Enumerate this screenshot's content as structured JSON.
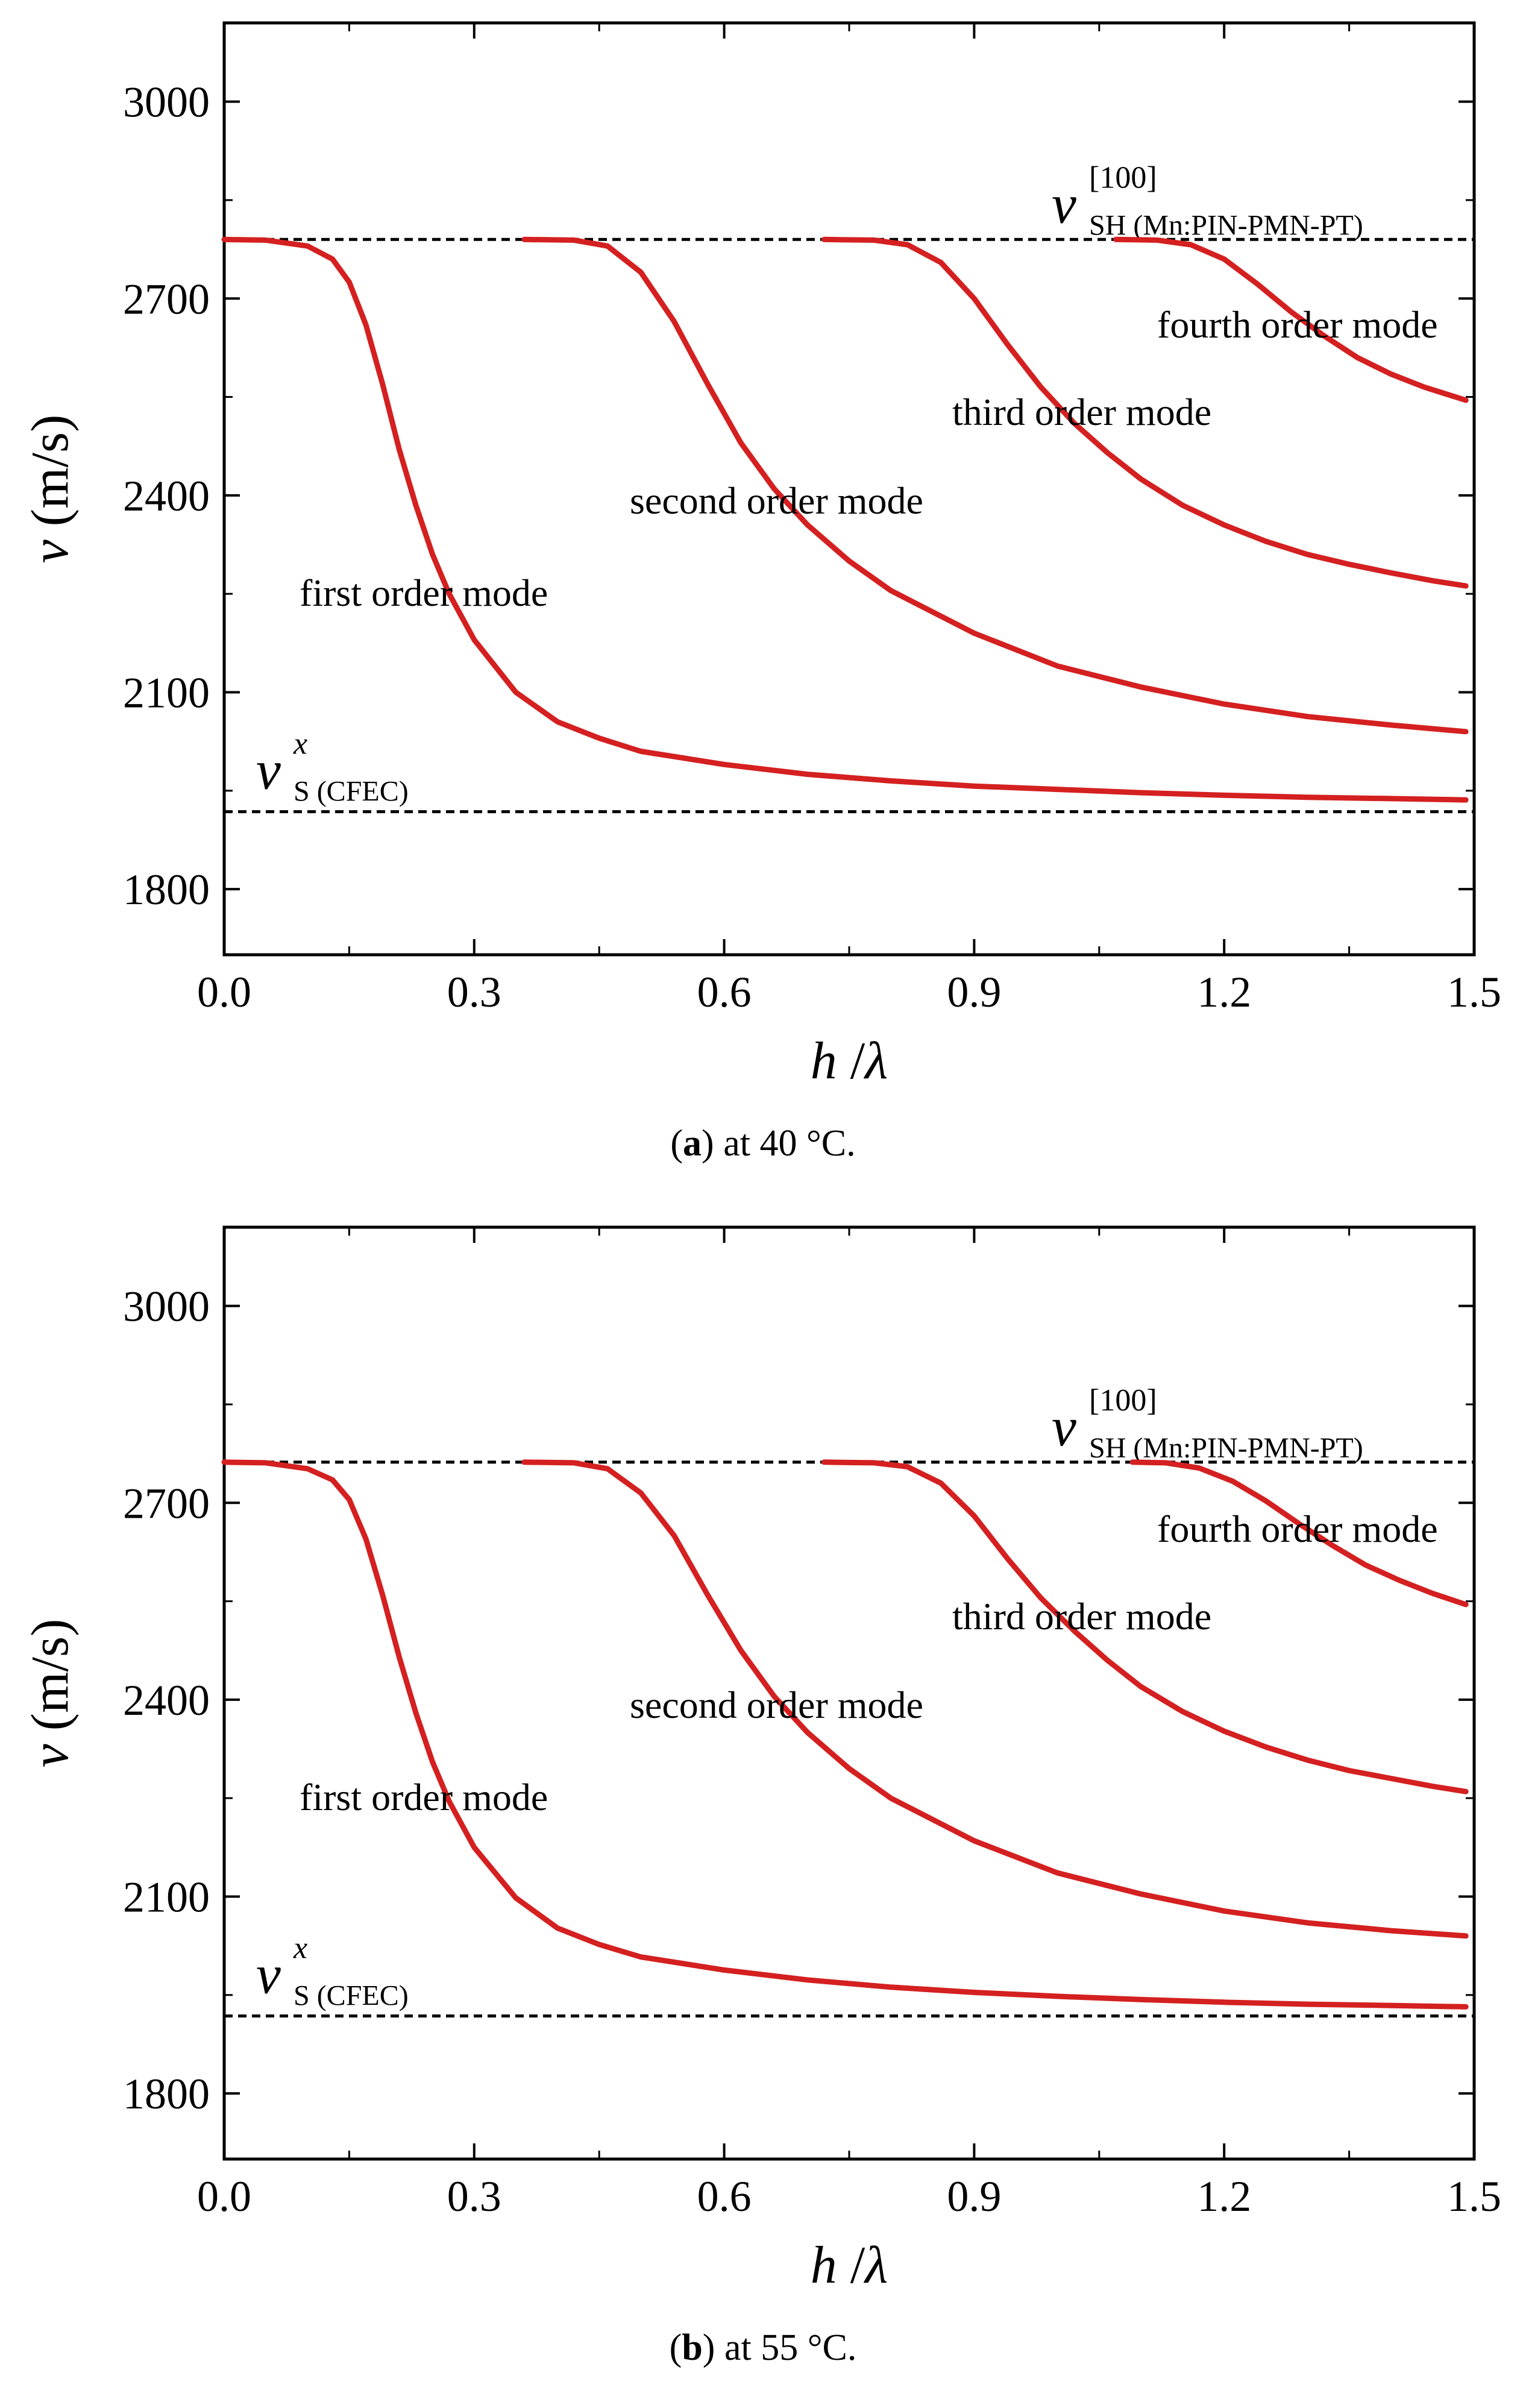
{
  "charts": {
    "a": {
      "caption": {
        "letter": "a",
        "open": "(",
        "close": ") at 40 °C."
      },
      "chart_data": {
        "type": "line",
        "xlabel": {
          "var": "h",
          "sep": " /",
          "greek": "λ"
        },
        "ylabel": {
          "var": "v",
          "unit": " (m/s)"
        },
        "xlim": [
          0.0,
          1.5
        ],
        "ylim": [
          1700,
          3120
        ],
        "xticks": [
          "0.0",
          "0.3",
          "0.6",
          "0.9",
          "1.2",
          "1.5"
        ],
        "yticks": [
          "1800",
          "2100",
          "2400",
          "2700",
          "3000"
        ],
        "reference_lines": [
          {
            "name": "v_SH[100](Mn:PIN-PMN-PT)",
            "y": 2790,
            "label": {
              "base": "v",
              "sup": "[100]",
              "sub": "SH (Mn:PIN-PMN-PT)"
            }
          },
          {
            "name": "v_S^x(CFEC)",
            "y": 1918,
            "label": {
              "base": "v",
              "sup": "x",
              "sub": "S (CFEC)"
            }
          }
        ],
        "series": [
          {
            "name": "first order mode",
            "color": "#d42020",
            "x": [
              0.0,
              0.05,
              0.1,
              0.13,
              0.15,
              0.17,
              0.19,
              0.21,
              0.23,
              0.25,
              0.27,
              0.3,
              0.35,
              0.4,
              0.45,
              0.5,
              0.6,
              0.7,
              0.8,
              0.9,
              1.0,
              1.1,
              1.2,
              1.3,
              1.4,
              1.49
            ],
            "values": [
              2790,
              2789,
              2780,
              2760,
              2725,
              2660,
              2570,
              2470,
              2385,
              2310,
              2250,
              2180,
              2100,
              2055,
              2030,
              2010,
              1990,
              1975,
              1965,
              1957,
              1952,
              1947,
              1943,
              1940,
              1938,
              1936
            ]
          },
          {
            "name": "second order mode",
            "color": "#d42020",
            "x": [
              0.36,
              0.42,
              0.46,
              0.5,
              0.54,
              0.58,
              0.62,
              0.66,
              0.7,
              0.75,
              0.8,
              0.9,
              1.0,
              1.1,
              1.2,
              1.3,
              1.4,
              1.49
            ],
            "values": [
              2790,
              2789,
              2780,
              2740,
              2665,
              2570,
              2480,
              2410,
              2355,
              2300,
              2255,
              2190,
              2140,
              2108,
              2082,
              2063,
              2050,
              2040
            ]
          },
          {
            "name": "third order mode",
            "color": "#d42020",
            "x": [
              0.72,
              0.78,
              0.82,
              0.86,
              0.9,
              0.94,
              0.98,
              1.02,
              1.06,
              1.1,
              1.15,
              1.2,
              1.25,
              1.3,
              1.35,
              1.4,
              1.45,
              1.49
            ],
            "values": [
              2790,
              2789,
              2782,
              2755,
              2700,
              2630,
              2565,
              2510,
              2465,
              2425,
              2385,
              2355,
              2330,
              2310,
              2295,
              2282,
              2270,
              2262
            ]
          },
          {
            "name": "fourth order mode",
            "color": "#d42020",
            "x": [
              1.07,
              1.12,
              1.16,
              1.2,
              1.24,
              1.28,
              1.32,
              1.36,
              1.4,
              1.44,
              1.49
            ],
            "values": [
              2790,
              2789,
              2782,
              2760,
              2722,
              2680,
              2643,
              2610,
              2585,
              2565,
              2545
            ]
          }
        ],
        "annotations": [
          "fourth order mode",
          "third order mode",
          "second order mode",
          "first order mode"
        ]
      }
    },
    "b": {
      "caption": {
        "letter": "b",
        "open": "(",
        "close": ") at 55 °C."
      },
      "chart_data": {
        "type": "line",
        "xlabel": {
          "var": "h",
          "sep": " /",
          "greek": "λ"
        },
        "ylabel": {
          "var": "v",
          "unit": " (m/s)"
        },
        "xlim": [
          0.0,
          1.5
        ],
        "ylim": [
          1700,
          3120
        ],
        "xticks": [
          "0.0",
          "0.3",
          "0.6",
          "0.9",
          "1.2",
          "1.5"
        ],
        "yticks": [
          "1800",
          "2100",
          "2400",
          "2700",
          "3000"
        ],
        "reference_lines": [
          {
            "name": "v_SH[100](Mn:PIN-PMN-PT)",
            "y": 2762,
            "label": {
              "base": "v",
              "sup": "[100]",
              "sub": "SH (Mn:PIN-PMN-PT)"
            }
          },
          {
            "name": "v_S^x(CFEC)",
            "y": 1918,
            "label": {
              "base": "v",
              "sup": "x",
              "sub": "S (CFEC)"
            }
          }
        ],
        "series": [
          {
            "name": "first order mode",
            "color": "#d42020",
            "x": [
              0.0,
              0.05,
              0.1,
              0.13,
              0.15,
              0.17,
              0.19,
              0.21,
              0.23,
              0.25,
              0.27,
              0.3,
              0.35,
              0.4,
              0.45,
              0.5,
              0.6,
              0.7,
              0.8,
              0.9,
              1.0,
              1.1,
              1.2,
              1.3,
              1.4,
              1.49
            ],
            "values": [
              2762,
              2761,
              2752,
              2735,
              2705,
              2645,
              2560,
              2465,
              2380,
              2305,
              2245,
              2175,
              2098,
              2052,
              2027,
              2008,
              1988,
              1973,
              1962,
              1954,
              1948,
              1943,
              1939,
              1936,
              1934,
              1932
            ]
          },
          {
            "name": "second order mode",
            "color": "#d42020",
            "x": [
              0.36,
              0.42,
              0.46,
              0.5,
              0.54,
              0.58,
              0.62,
              0.66,
              0.7,
              0.75,
              0.8,
              0.9,
              1.0,
              1.1,
              1.2,
              1.3,
              1.4,
              1.49
            ],
            "values": [
              2762,
              2761,
              2752,
              2715,
              2650,
              2560,
              2475,
              2405,
              2350,
              2295,
              2250,
              2185,
              2136,
              2104,
              2078,
              2060,
              2048,
              2040
            ]
          },
          {
            "name": "third order mode",
            "color": "#d42020",
            "x": [
              0.72,
              0.78,
              0.82,
              0.86,
              0.9,
              0.94,
              0.98,
              1.02,
              1.06,
              1.1,
              1.15,
              1.2,
              1.25,
              1.3,
              1.35,
              1.4,
              1.45,
              1.49
            ],
            "values": [
              2762,
              2761,
              2755,
              2730,
              2680,
              2615,
              2555,
              2505,
              2460,
              2420,
              2382,
              2352,
              2328,
              2308,
              2292,
              2280,
              2268,
              2260
            ]
          },
          {
            "name": "fourth order mode",
            "color": "#d42020",
            "x": [
              1.09,
              1.13,
              1.17,
              1.21,
              1.25,
              1.29,
              1.33,
              1.37,
              1.41,
              1.45,
              1.49
            ],
            "values": [
              2762,
              2761,
              2753,
              2733,
              2703,
              2668,
              2635,
              2605,
              2582,
              2562,
              2545
            ]
          }
        ],
        "annotations": [
          "fourth order mode",
          "third order mode",
          "second order mode",
          "first order mode"
        ]
      }
    }
  }
}
